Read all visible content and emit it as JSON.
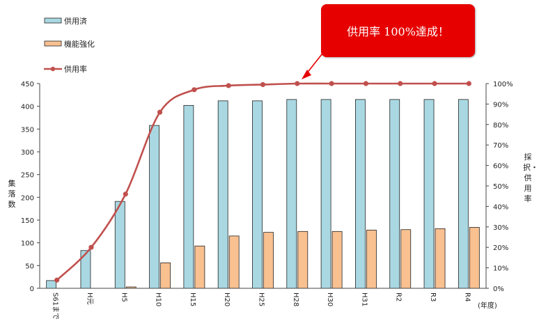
{
  "callout": "供用率 100%達成！",
  "chart_data": {
    "type": "bar",
    "categories": [
      "S61まで",
      "H元",
      "H5",
      "H10",
      "H15",
      "H20",
      "H25",
      "H28",
      "H30",
      "H31",
      "R2",
      "R3",
      "R4"
    ],
    "xlabel": "(年度)",
    "ylabel": "集落数",
    "y2label": "採択・供用率",
    "ylim": [
      0,
      450
    ],
    "y2lim": [
      0,
      100
    ],
    "yticks": [
      0,
      50,
      100,
      150,
      200,
      250,
      300,
      350,
      400,
      450
    ],
    "y2ticks": [
      "0%",
      "10%",
      "20%",
      "30%",
      "40%",
      "50%",
      "60%",
      "70%",
      "80%",
      "90%",
      "100%"
    ],
    "legend_position": "top-left",
    "series": [
      {
        "name": "供用済",
        "type": "bar",
        "color": "#a9d8e2",
        "values": [
          17,
          83,
          191,
          358,
          402,
          412,
          412,
          415,
          415,
          415,
          415,
          415,
          415
        ]
      },
      {
        "name": "機能強化",
        "type": "bar",
        "color": "#f9c090",
        "values": [
          0,
          0,
          3,
          56,
          93,
          115,
          123,
          125,
          125,
          128,
          129,
          131,
          134
        ]
      },
      {
        "name": "供用率",
        "type": "line",
        "axis": "right",
        "color": "#c0504d",
        "values": [
          4,
          20,
          46,
          86,
          97,
          99,
          99.5,
          100,
          100,
          100,
          100,
          100,
          100
        ]
      }
    ]
  }
}
